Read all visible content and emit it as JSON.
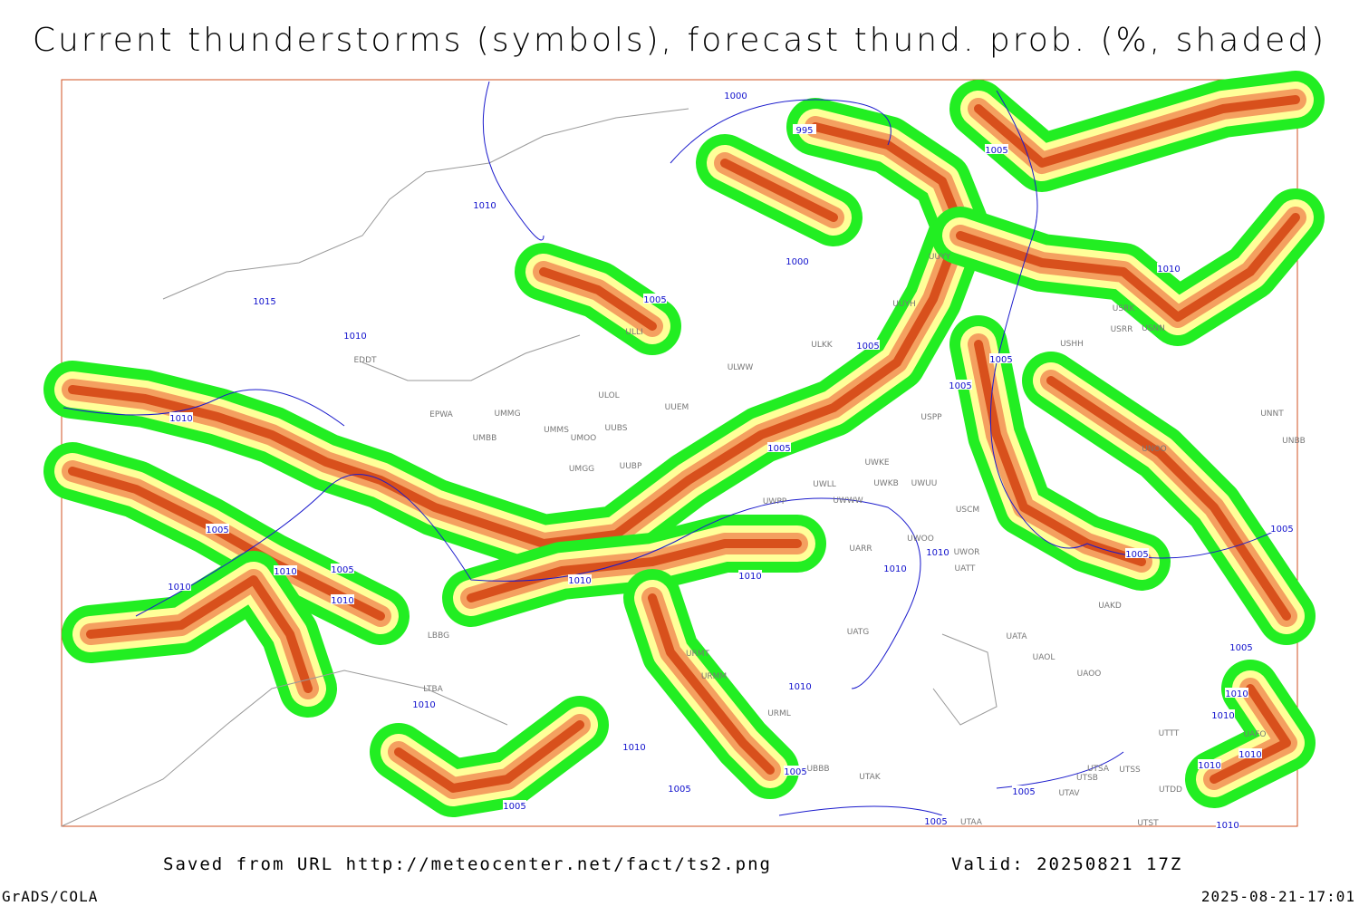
{
  "title": "Current thunderstorms (symbols), forecast thund. prob. (%, shaded)",
  "footer": {
    "source": "Saved from URL http://meteocenter.net/fact/ts2.png",
    "valid": "Valid: 20250821 17Z",
    "software": "GrADS/COLA",
    "timestamp": "2025-08-21-17:01"
  },
  "isobar_labels": [
    "1000",
    "995",
    "1005",
    "1010",
    "1000",
    "1005",
    "1015",
    "1010",
    "1005",
    "1010",
    "1005",
    "1005",
    "1010",
    "1005",
    "1005",
    "1010",
    "1005",
    "1010",
    "1010",
    "1010",
    "1010",
    "1010",
    "1010",
    "1005",
    "1005",
    "1005",
    "1010",
    "1010",
    "1010",
    "1005",
    "1005",
    "1005",
    "1005",
    "1005",
    "1010",
    "1010",
    "1010",
    "1010",
    "1010"
  ],
  "stations": [
    "EDDT",
    "EPWA",
    "UMMG",
    "UMBB",
    "UMMS",
    "UMOO",
    "UUBS",
    "UUEM",
    "ULOL",
    "ULLI",
    "ULWW",
    "ULKK",
    "UUYH",
    "UUYY",
    "USRK",
    "USRR",
    "USNN",
    "USHH",
    "UNNT",
    "UNBB",
    "UNOO",
    "USPP",
    "UWKE",
    "UWKB",
    "UWUU",
    "UWLL",
    "UWWW",
    "UWPP",
    "USCM",
    "UWOO",
    "UWOR",
    "UATT",
    "UARR",
    "UAKD",
    "UATG",
    "UATA",
    "UAOL",
    "UAOO",
    "UMGG",
    "UUBP",
    "URMT",
    "URMM",
    "URML",
    "UBBB",
    "UTAK",
    "UTAA",
    "UTSA",
    "UTSB",
    "UTAV",
    "UTSS",
    "UTST",
    "UTDD",
    "UTTT",
    "UAFO",
    "LBBG",
    "LTBA"
  ]
}
